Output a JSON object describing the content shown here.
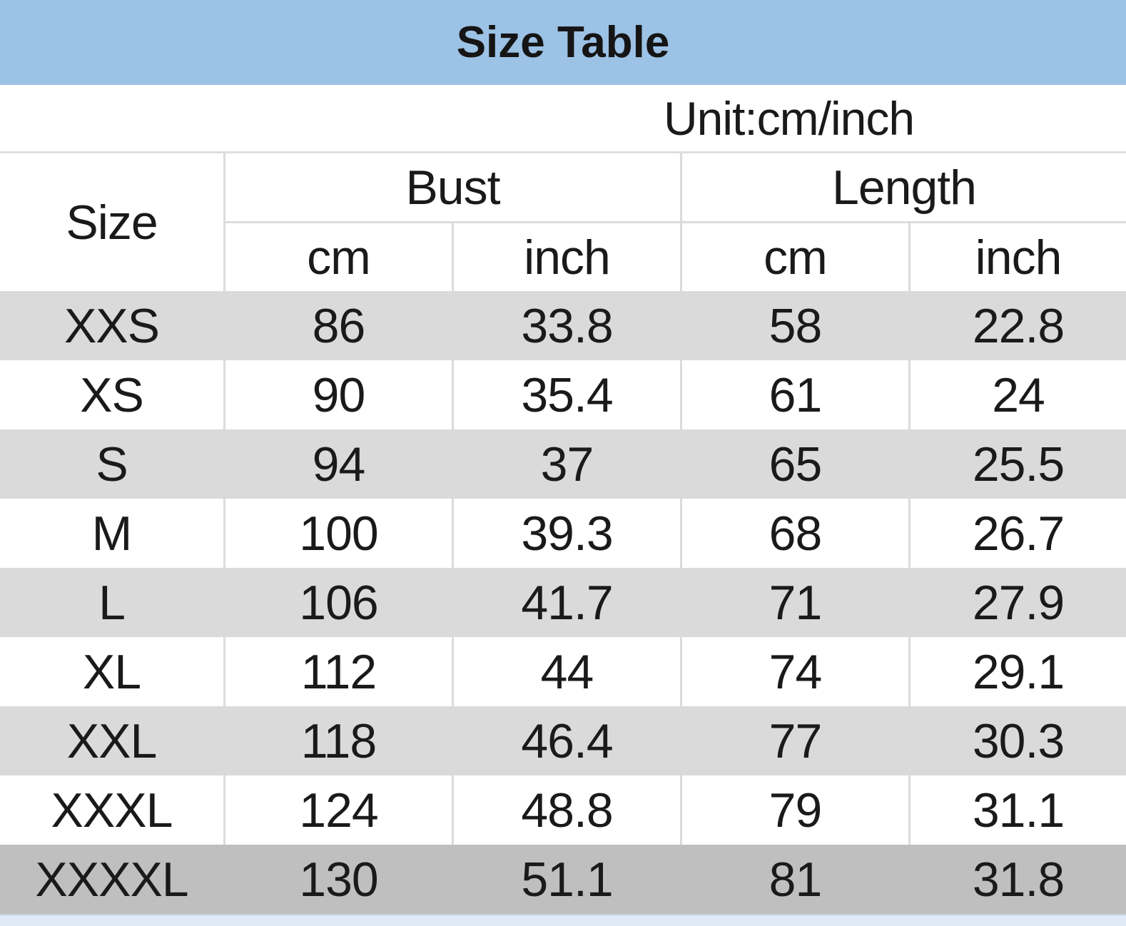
{
  "title": "Size Table",
  "unit_label": "Unit:cm/inch",
  "headers": {
    "size": "Size",
    "bust": "Bust",
    "length": "Length",
    "cm": "cm",
    "inch": "inch"
  },
  "colors": {
    "title_background": "#9CC2E5",
    "row_gray": "#DADADA",
    "row_white": "#FFFFFF",
    "last_row_gray": "#BFBFBF",
    "footer_strip": "#DEEAF6",
    "grid_border": "#DBDBDB",
    "text": "#1A1A1A"
  },
  "chart_data": {
    "type": "table",
    "title": "Size Table",
    "unit": "cm/inch",
    "columns": [
      "Size",
      "Bust (cm)",
      "Bust (inch)",
      "Length (cm)",
      "Length (inch)"
    ],
    "rows": [
      [
        "XXS",
        86,
        33.8,
        58,
        22.8
      ],
      [
        "XS",
        90,
        35.4,
        61,
        24
      ],
      [
        "S",
        94,
        37,
        65,
        25.5
      ],
      [
        "M",
        100,
        39.3,
        68,
        26.7
      ],
      [
        "L",
        106,
        41.7,
        71,
        27.9
      ],
      [
        "XL",
        112,
        44,
        74,
        29.1
      ],
      [
        "XXL",
        118,
        46.4,
        77,
        30.3
      ],
      [
        "XXXL",
        124,
        48.8,
        79,
        31.1
      ],
      [
        "XXXXL",
        130,
        51.1,
        81,
        31.8
      ]
    ]
  }
}
